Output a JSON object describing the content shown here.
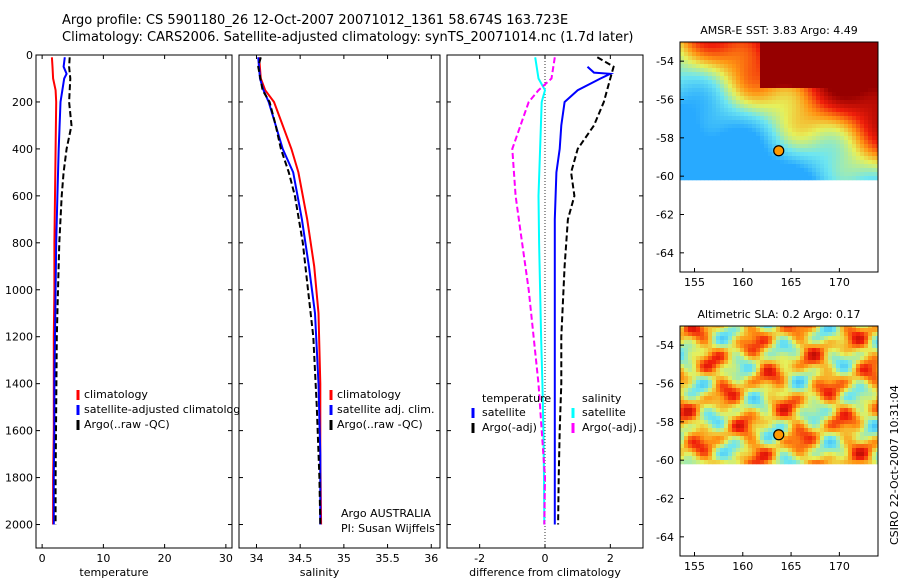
{
  "header": {
    "line1": "Argo profile: CS 5901180_26 12-Oct-2007 20071012_1361 58.674S 163.723E",
    "line2": "Climatology: CARS2006. Satellite-adjusted climatology: synTS_20071014.nc (1.7d later)"
  },
  "credit": "CSIRO 22-Oct-2007 10:31:04",
  "colors": {
    "climatology": "#ff0000",
    "satellite": "#0000ff",
    "argo": "#000000",
    "cyan": "#00ffff",
    "magenta": "#ff00ff"
  },
  "chart_data": [
    {
      "type": "line",
      "xlabel": "temperature",
      "ylabel": "",
      "xlim": [
        -1,
        31
      ],
      "ylim": [
        0,
        2100
      ],
      "xticks": [
        0,
        10,
        20,
        30
      ],
      "yticks": [
        0,
        200,
        400,
        600,
        800,
        1000,
        1200,
        1400,
        1600,
        1800,
        2000
      ],
      "y_reversed": true,
      "legend": {
        "placement": "right",
        "entries": [
          "climatology",
          "satellite-adjusted climatology",
          "Argo(..raw -QC)"
        ]
      },
      "series": [
        {
          "name": "climatology",
          "color": "#ff0000",
          "style": "solid",
          "x": [
            1.6,
            1.7,
            1.8,
            2.2,
            2.3,
            2.2,
            2.1,
            2.0,
            2.0,
            1.9,
            1.9,
            1.9,
            1.8,
            1.8
          ],
          "y": [
            10,
            50,
            100,
            150,
            200,
            400,
            600,
            800,
            1000,
            1200,
            1400,
            1600,
            1800,
            2000
          ]
        },
        {
          "name": "satellite-adjusted climatology",
          "color": "#0000ff",
          "style": "solid",
          "x": [
            3.7,
            3.5,
            4.0,
            3.6,
            3.0,
            2.7,
            2.5,
            2.3,
            2.2,
            2.1,
            2.0,
            2.0,
            1.9,
            1.9
          ],
          "y": [
            10,
            50,
            80,
            100,
            200,
            400,
            600,
            800,
            1000,
            1200,
            1400,
            1600,
            1800,
            2000
          ]
        },
        {
          "name": "Argo(..raw -QC)",
          "color": "#000000",
          "style": "dashed",
          "x": [
            4.5,
            4.4,
            4.6,
            4.4,
            4.8,
            4.0,
            3.5,
            3.2,
            2.8,
            2.6,
            2.4,
            2.3,
            2.2,
            2.2
          ],
          "y": [
            10,
            50,
            100,
            200,
            300,
            400,
            500,
            600,
            800,
            1000,
            1200,
            1500,
            1800,
            2000
          ]
        }
      ]
    },
    {
      "type": "line",
      "xlabel": "salinity",
      "ylabel": "",
      "xlim": [
        33.8,
        36.1
      ],
      "ylim": [
        0,
        2100
      ],
      "xticks": [
        34,
        34.5,
        35,
        35.5,
        36
      ],
      "yticks": [
        0,
        200,
        400,
        600,
        800,
        1000,
        1200,
        1400,
        1600,
        1800,
        2000
      ],
      "y_reversed": true,
      "legend": {
        "placement": "right",
        "entries": [
          "climatology",
          "satellite adj. clim.",
          "Argo(..raw -QC)"
        ]
      },
      "annotations": [
        "Argo AUSTRALIA",
        "PI: Susan Wijffels"
      ],
      "series": [
        {
          "name": "climatology",
          "color": "#ff0000",
          "style": "solid",
          "x": [
            34.03,
            34.05,
            34.1,
            34.2,
            34.3,
            34.4,
            34.48,
            34.58,
            34.66,
            34.71,
            34.73,
            34.73,
            34.74
          ],
          "y": [
            10,
            100,
            150,
            200,
            300,
            400,
            500,
            700,
            900,
            1100,
            1400,
            1700,
            2000
          ]
        },
        {
          "name": "satellite adj. clim.",
          "color": "#0000ff",
          "style": "solid",
          "x": [
            34.02,
            34.04,
            34.08,
            34.14,
            34.22,
            34.3,
            34.42,
            34.52,
            34.6,
            34.67,
            34.71,
            34.73,
            34.73
          ],
          "y": [
            10,
            100,
            150,
            200,
            300,
            400,
            500,
            700,
            900,
            1100,
            1400,
            1700,
            2000
          ]
        },
        {
          "name": "Argo(..raw -QC)",
          "color": "#000000",
          "style": "dashed",
          "x": [
            34.05,
            34.02,
            34.07,
            34.15,
            34.22,
            34.28,
            34.37,
            34.44,
            34.53,
            34.59,
            34.65,
            34.69,
            34.72,
            34.73
          ],
          "y": [
            10,
            50,
            150,
            200,
            300,
            400,
            500,
            600,
            800,
            1000,
            1200,
            1500,
            1800,
            2000
          ]
        }
      ]
    },
    {
      "type": "line",
      "xlabel": "difference from climatology",
      "ylabel": "",
      "xlim": [
        -3,
        3
      ],
      "ylim": [
        0,
        2100
      ],
      "xticks": [
        -2,
        0,
        2
      ],
      "yticks": [
        0,
        200,
        400,
        600,
        800,
        1000,
        1200,
        1400,
        1600,
        1800,
        2000
      ],
      "y_reversed": true,
      "legend": {
        "placement": "right",
        "groups": [
          "temperature",
          "salinity"
        ],
        "entries": [
          "satellite",
          "Argo(-adj)",
          "satellite",
          "Argo(-adj)"
        ]
      },
      "series": [
        {
          "name": "satellite",
          "group": "temperature",
          "color": "#0000ff",
          "style": "solid",
          "x": [
            1.3,
            1.5,
            2.0,
            1.7,
            1.0,
            0.6,
            0.5,
            0.45,
            0.35,
            0.3,
            0.3,
            0.3,
            0.3,
            0.3,
            0.3
          ],
          "y": [
            50,
            75,
            80,
            100,
            150,
            200,
            300,
            400,
            500,
            700,
            900,
            1200,
            1500,
            1800,
            2000
          ]
        },
        {
          "name": "Argo(-adj)",
          "group": "temperature",
          "color": "#000000",
          "style": "dashed",
          "x": [
            1.6,
            2.1,
            2.0,
            1.8,
            1.5,
            1.0,
            0.8,
            0.9,
            0.7,
            0.6,
            0.5,
            0.5,
            0.45,
            0.42,
            0.4
          ],
          "y": [
            10,
            50,
            100,
            200,
            300,
            400,
            500,
            600,
            700,
            900,
            1200,
            1400,
            1600,
            1800,
            2000
          ]
        },
        {
          "name": "satellite",
          "group": "salinity",
          "color": "#00ffff",
          "style": "solid",
          "x": [
            -0.3,
            -0.2,
            0.0,
            -0.1,
            -0.15,
            -0.2,
            -0.18,
            -0.15,
            -0.12,
            -0.08,
            -0.05,
            -0.03,
            -0.02
          ],
          "y": [
            10,
            100,
            150,
            200,
            400,
            600,
            800,
            1000,
            1200,
            1400,
            1600,
            1800,
            2000
          ]
        },
        {
          "name": "Argo(-adj)",
          "group": "salinity",
          "color": "#ff00ff",
          "style": "dashed",
          "x": [
            0.3,
            0.2,
            -0.2,
            -0.5,
            -1.0,
            -0.9,
            -0.7,
            -0.5,
            -0.35,
            -0.2,
            -0.1,
            0.0,
            -0.02
          ],
          "y": [
            10,
            100,
            150,
            200,
            400,
            600,
            800,
            1000,
            1200,
            1400,
            1600,
            1800,
            2000
          ]
        }
      ]
    },
    {
      "type": "heatmap",
      "title": "AMSR-E SST: 3.83 Argo: 4.49",
      "xticks": [
        155,
        160,
        165,
        170
      ],
      "yticks": [
        -54,
        -56,
        -58,
        -60,
        -62,
        -64
      ],
      "xlim": [
        153.5,
        174
      ],
      "ylim": [
        -65,
        -53
      ],
      "data_ylim": [
        -60,
        -53
      ],
      "marker": {
        "lon": 163.723,
        "lat": -58.674
      }
    },
    {
      "type": "heatmap",
      "title": "Altimetric SLA: 0.2 Argo: 0.17",
      "xticks": [
        155,
        160,
        165,
        170
      ],
      "yticks": [
        -54,
        -56,
        -58,
        -60,
        -62,
        -64
      ],
      "xlim": [
        153.5,
        174
      ],
      "ylim": [
        -65,
        -53
      ],
      "data_ylim": [
        -60,
        -53
      ],
      "marker": {
        "lon": 163.723,
        "lat": -58.674
      }
    }
  ]
}
